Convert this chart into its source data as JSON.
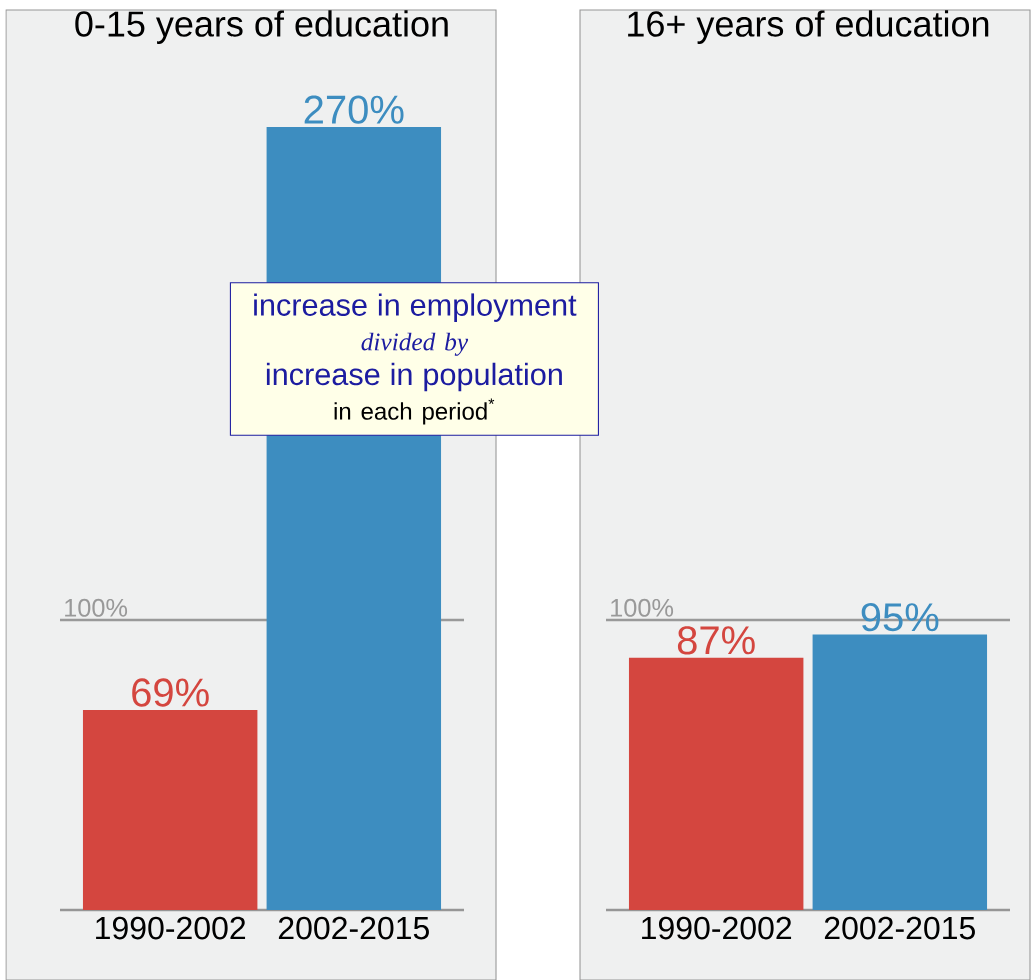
{
  "chart_data": [
    {
      "type": "bar",
      "title": "0-15 years of education",
      "categories": [
        "1990-2002",
        "2002-2015"
      ],
      "values": [
        69,
        270
      ],
      "colors": [
        "#d4463f",
        "#3d8dc0"
      ],
      "value_labels": [
        "69%",
        "270%"
      ],
      "tick_labels": "x",
      "ref_lines": [
        {
          "axis": "y",
          "value": 100,
          "label": "100%",
          "color": "#999999"
        }
      ],
      "annotations": [
        "increase in employment",
        "divided by",
        "increase in population",
        "in each period$^{*}$"
      ]
    },
    {
      "type": "bar",
      "title": "16+ years of education",
      "categories": [
        "1990-2002",
        "2002-2015"
      ],
      "values": [
        87,
        95
      ],
      "colors": [
        "#d4463f",
        "#3d8dc0"
      ],
      "value_labels": [
        "87%",
        "95%"
      ],
      "tick_labels": "x",
      "ref_lines": [
        {
          "axis": "y",
          "value": 100,
          "label": "100%",
          "color": "#999999"
        }
      ]
    }
  ]
}
